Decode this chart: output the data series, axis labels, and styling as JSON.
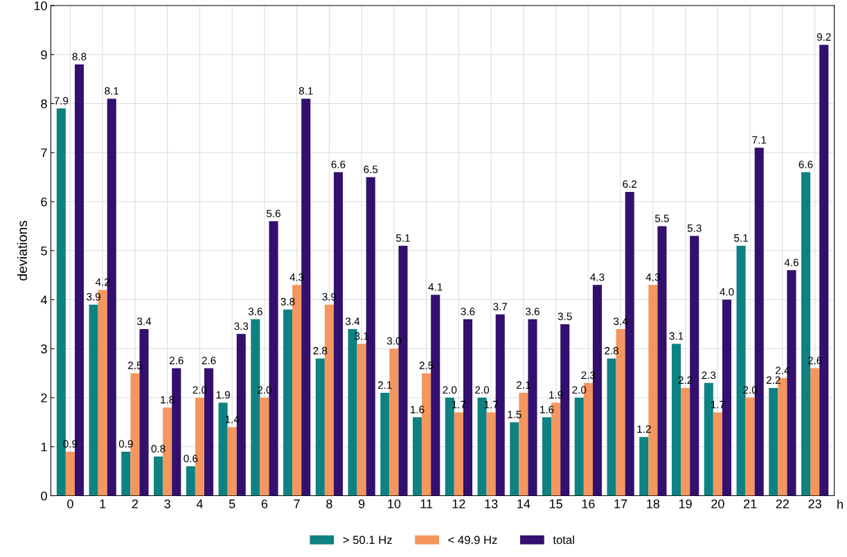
{
  "chart_data": {
    "type": "bar",
    "ylabel": "deviations",
    "xlabel": "h",
    "categories": [
      "0",
      "1",
      "2",
      "3",
      "4",
      "5",
      "6",
      "7",
      "8",
      "9",
      "10",
      "11",
      "12",
      "13",
      "14",
      "15",
      "16",
      "17",
      "18",
      "19",
      "20",
      "21",
      "22",
      "23"
    ],
    "series": [
      {
        "name": "> 50.1 Hz",
        "color": "#0e8282",
        "values": [
          7.9,
          3.9,
          0.9,
          0.8,
          0.6,
          1.9,
          3.6,
          3.8,
          2.8,
          3.4,
          2.1,
          1.6,
          2,
          2,
          1.5,
          1.6,
          2,
          2.8,
          1.2,
          3.1,
          2.3,
          5.1,
          2.2,
          6.6
        ],
        "value_labels": [
          "7.9",
          "3.9",
          "0.9",
          "0.8",
          "0.6",
          "1.9",
          "3.6",
          "3.8",
          "2.8",
          "3.4",
          "2.1",
          "1.6",
          "2.0",
          "2.0",
          "1.5",
          "1.6",
          "2.0",
          "2.8",
          "1.2",
          "3.1",
          "2.3",
          "5.1",
          "2.2",
          "6.6"
        ]
      },
      {
        "name": "< 49.9 Hz",
        "color": "#f4975e",
        "values": [
          0.9,
          4.2,
          2.5,
          1.8,
          2,
          1.4,
          2,
          4.3,
          3.9,
          3.1,
          3,
          2.5,
          1.7,
          1.7,
          2.1,
          1.9,
          2.3,
          3.4,
          4.3,
          2.2,
          1.7,
          2,
          2.4,
          2.6
        ],
        "value_labels": [
          "0.9",
          "4.2",
          "2.5",
          "1.8",
          "2.0",
          "1.4",
          "2.0",
          "4.3",
          "3.9",
          "3.1",
          "3.0",
          "2.5",
          "1.7",
          "1.7",
          "2.1",
          "1.9",
          "2.3",
          "3.4",
          "4.3",
          "2.2",
          "1.7",
          "2.0",
          "2.4",
          "2.6"
        ]
      },
      {
        "name": "total",
        "color": "#33106e",
        "values": [
          8.8,
          8.1,
          3.4,
          2.6,
          2.6,
          3.3,
          5.6,
          8.1,
          6.6,
          6.5,
          5.1,
          4.1,
          3.6,
          3.7,
          3.6,
          3.5,
          4.3,
          6.2,
          5.5,
          5.3,
          4,
          7.1,
          4.6,
          9.2
        ],
        "value_labels": [
          "8.8",
          "8.1",
          "3.4",
          "2.6",
          "2.6",
          "3.3",
          "5.6",
          "8.1",
          "6.6",
          "6.5",
          "5.1",
          "4.1",
          "3.6",
          "3.7",
          "3.6",
          "3.5",
          "4.3",
          "6.2",
          "5.5",
          "5.3",
          "4.0",
          "7.1",
          "4.6",
          "9.2"
        ]
      }
    ],
    "ylim": [
      0,
      10
    ],
    "yticks": [
      0,
      1,
      2,
      3,
      4,
      5,
      6,
      7,
      8,
      9,
      10
    ],
    "grid": true,
    "legend": "bottom"
  }
}
